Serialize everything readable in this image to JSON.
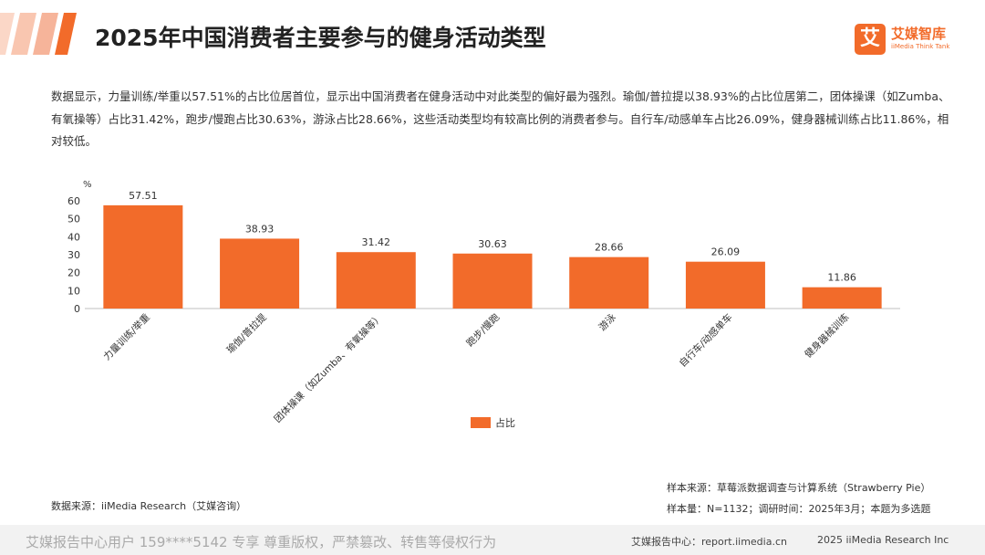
{
  "header": {
    "title": "2025年中国消费者主要参与的健身活动类型",
    "logo_char": "艾",
    "logo_cn": "艾媒智库",
    "logo_en": "iiMedia Think Tank"
  },
  "description": "数据显示，力量训练/举重以57.51%的占比位居首位，显示出中国消费者在健身活动中对此类型的偏好最为强烈。瑜伽/普拉提以38.93%的占比位居第二，团体操课（如Zumba、有氧操等）占比31.42%，跑步/慢跑占比30.63%，游泳占比28.66%，这些活动类型均有较高比例的消费者参与。自行车/动感单车占比26.09%，健身器械训练占比11.86%，相对较低。",
  "chart_data": {
    "type": "bar",
    "categories": [
      "力量训练/举重",
      "瑜伽/普拉提",
      "团体操课（如Zumba、有氧操等）",
      "跑步/慢跑",
      "游泳",
      "自行车/动感单车",
      "健身器械训练"
    ],
    "series": [
      {
        "name": "占比",
        "values": [
          57.51,
          38.93,
          31.42,
          30.63,
          28.66,
          26.09,
          11.86
        ],
        "color": "#f26b2a"
      }
    ],
    "ylabel": "%",
    "ylim": [
      0,
      60
    ],
    "yticks": [
      0,
      10,
      20,
      30,
      40,
      50,
      60
    ],
    "grid": false,
    "legend": "bottom-center"
  },
  "sources": {
    "data_source": "数据来源：iiMedia Research（艾媒咨询）",
    "sample_source": "样本来源：草莓派数据调查与计算系统（Strawberry Pie）",
    "sample_info": "样本量：N=1132；调研时间：2025年3月；本题为多选题"
  },
  "footer": {
    "watermark": "艾媒报告中心用户 159****5142 专享 尊重版权，严禁篡改、转售等侵权行为",
    "site": "艾媒报告中心：report.iimedia.cn",
    "copyright": "2025 iiMedia Research Inc"
  },
  "colors": {
    "accent": "#f26b2a",
    "stripe": "#f6b49a"
  }
}
